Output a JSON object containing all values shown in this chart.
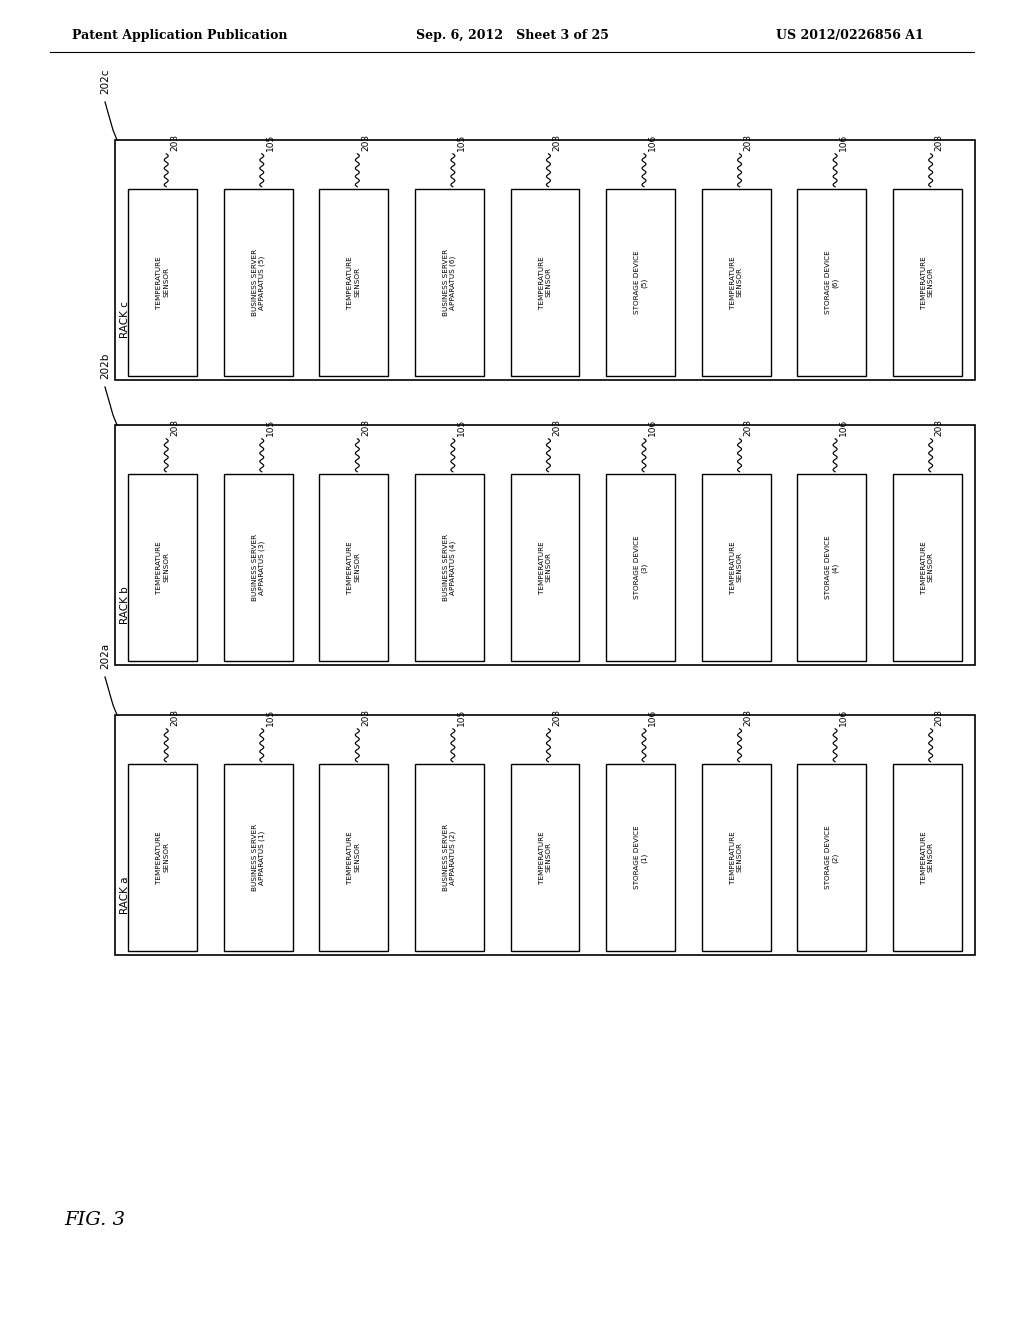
{
  "title_left": "Patent Application Publication",
  "title_center": "Sep. 6, 2012   Sheet 3 of 25",
  "title_right": "US 2012/0226856 A1",
  "fig_label": "FIG. 3",
  "racks": [
    {
      "label": "RACK c",
      "ref": "202c",
      "items": [
        {
          "ref": "203",
          "text": "TEMPERATURE\nSENSOR"
        },
        {
          "ref": "105",
          "text": "BUSINESS SERVER\nAPPARATUS (5)"
        },
        {
          "ref": "203",
          "text": "TEMPERATURE\nSENSOR"
        },
        {
          "ref": "105",
          "text": "BUSINESS SERVER\nAPPARATUS (6)"
        },
        {
          "ref": "203",
          "text": "TEMPERATURE\nSENSOR"
        },
        {
          "ref": "106",
          "text": "STORAGE DEVICE\n(5)"
        },
        {
          "ref": "203",
          "text": "TEMPERATURE\nSENSOR"
        },
        {
          "ref": "106",
          "text": "STORAGE DEVICE\n(6)"
        },
        {
          "ref": "203",
          "text": "TEMPERATURE\nSENSOR"
        }
      ]
    },
    {
      "label": "RACK b",
      "ref": "202b",
      "items": [
        {
          "ref": "203",
          "text": "TEMPERATURE\nSENSOR"
        },
        {
          "ref": "105",
          "text": "BUSINESS SERVER\nAPPARATUS (3)"
        },
        {
          "ref": "203",
          "text": "TEMPERATURE\nSENSOR"
        },
        {
          "ref": "105",
          "text": "BUSINESS SERVER\nAPPARATUS (4)"
        },
        {
          "ref": "203",
          "text": "TEMPERATURE\nSENSOR"
        },
        {
          "ref": "106",
          "text": "STORAGE DEVICE\n(3)"
        },
        {
          "ref": "203",
          "text": "TEMPERATURE\nSENSOR"
        },
        {
          "ref": "106",
          "text": "STORAGE DEVICE\n(4)"
        },
        {
          "ref": "203",
          "text": "TEMPERATURE\nSENSOR"
        }
      ]
    },
    {
      "label": "RACK a",
      "ref": "202a",
      "items": [
        {
          "ref": "203",
          "text": "TEMPERATURE\nSENSOR"
        },
        {
          "ref": "105",
          "text": "BUSINESS SERVER\nAPPARATUS (1)"
        },
        {
          "ref": "203",
          "text": "TEMPERATURE\nSENSOR"
        },
        {
          "ref": "105",
          "text": "BUSINESS SERVER\nAPPARATUS (2)"
        },
        {
          "ref": "203",
          "text": "TEMPERATURE\nSENSOR"
        },
        {
          "ref": "106",
          "text": "STORAGE DEVICE\n(1)"
        },
        {
          "ref": "203",
          "text": "TEMPERATURE\nSENSOR"
        },
        {
          "ref": "106",
          "text": "STORAGE DEVICE\n(2)"
        },
        {
          "ref": "203",
          "text": "TEMPERATURE\nSENSOR"
        }
      ]
    }
  ],
  "bg_color": "#ffffff",
  "text_color": "#000000"
}
